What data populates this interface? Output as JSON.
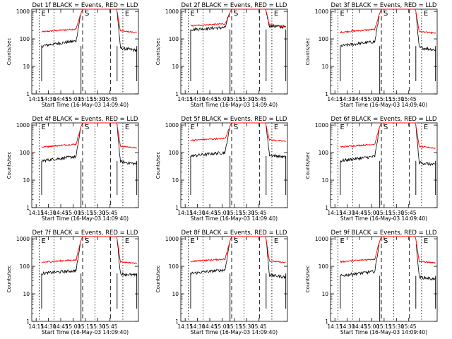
{
  "figure": {
    "x_label": "Start Time (16-May-03 14:09:40)",
    "y_label": "Counts/sec",
    "x_ticks": [
      "14:15",
      "14:30",
      "14:45",
      "15:00",
      "15:15",
      "15:30",
      "15:45"
    ],
    "y_ticks": [
      "1",
      "10",
      "100",
      "1000"
    ],
    "colors": {
      "events": "#000000",
      "lld": "#ff0000"
    }
  },
  "chart_data": [
    {
      "type": "line",
      "title": "Det 1f BLACK = Events, RED = LLD",
      "markers": [
        {
          "label": "E",
          "t": 9
        },
        {
          "label": "S",
          "t": 62
        },
        {
          "label": "E",
          "t": 111
        }
      ],
      "xlim": [
        0,
        130
      ],
      "ylim": [
        1,
        1200
      ],
      "yscale": "log",
      "events": {
        "before_level": 55,
        "before_rise": 1.6,
        "after_level": 48,
        "after_decay": 0.8
      },
      "lld": {
        "before_level": 180,
        "before_rise": 1.3,
        "after_level": 200,
        "after_decay": 0.85
      }
    },
    {
      "type": "line",
      "title": "Det 2f BLACK = Events, RED = LLD",
      "markers": [
        {
          "label": "E",
          "t": 9
        },
        {
          "label": "S",
          "t": 62
        },
        {
          "label": "E",
          "t": 111
        }
      ],
      "xlim": [
        0,
        130
      ],
      "ylim": [
        1,
        1200
      ],
      "yscale": "log",
      "events": {
        "before_level": 220,
        "before_rise": 1.2,
        "after_level": 300,
        "after_decay": 0.9
      },
      "lld": {
        "before_level": 300,
        "before_rise": 1.2,
        "after_level": 330,
        "after_decay": 0.85
      }
    },
    {
      "type": "line",
      "title": "Det 3f BLACK = Events, RED = LLD",
      "markers": [
        {
          "label": "E",
          "t": 9
        },
        {
          "label": "S",
          "t": 62
        },
        {
          "label": "E",
          "t": 111
        }
      ],
      "xlim": [
        0,
        130
      ],
      "ylim": [
        1,
        1200
      ],
      "yscale": "log",
      "events": {
        "before_level": 55,
        "before_rise": 1.5,
        "after_level": 50,
        "after_decay": 0.8
      },
      "lld": {
        "before_level": 175,
        "before_rise": 1.3,
        "after_level": 190,
        "after_decay": 0.85
      }
    },
    {
      "type": "line",
      "title": "Det 4f BLACK = Events, RED = LLD",
      "markers": [
        {
          "label": "E",
          "t": 9
        },
        {
          "label": "S",
          "t": 62
        },
        {
          "label": "E",
          "t": 111
        }
      ],
      "xlim": [
        0,
        130
      ],
      "ylim": [
        1,
        1200
      ],
      "yscale": "log",
      "events": {
        "before_level": 50,
        "before_rise": 1.5,
        "after_level": 48,
        "after_decay": 0.8
      },
      "lld": {
        "before_level": 160,
        "before_rise": 1.3,
        "after_level": 175,
        "after_decay": 0.85
      }
    },
    {
      "type": "line",
      "title": "Det 5f BLACK = Events, RED = LLD",
      "markers": [
        {
          "label": "E",
          "t": 9
        },
        {
          "label": "S",
          "t": 62
        },
        {
          "label": "E",
          "t": 111
        }
      ],
      "xlim": [
        0,
        130
      ],
      "ylim": [
        1,
        1200
      ],
      "yscale": "log",
      "events": {
        "before_level": 75,
        "before_rise": 1.4,
        "after_level": 85,
        "after_decay": 0.8
      },
      "lld": {
        "before_level": 280,
        "before_rise": 1.2,
        "after_level": 300,
        "after_decay": 0.85
      }
    },
    {
      "type": "line",
      "title": "Det 6f BLACK = Events, RED = LLD",
      "markers": [
        {
          "label": "E",
          "t": 9
        },
        {
          "label": "S",
          "t": 62
        },
        {
          "label": "E",
          "t": 111
        }
      ],
      "xlim": [
        0,
        130
      ],
      "ylim": [
        1,
        1200
      ],
      "yscale": "log",
      "events": {
        "before_level": 50,
        "before_rise": 1.5,
        "after_level": 45,
        "after_decay": 0.8
      },
      "lld": {
        "before_level": 160,
        "before_rise": 1.3,
        "after_level": 170,
        "after_decay": 0.85
      }
    },
    {
      "type": "line",
      "title": "Det 7f BLACK = Events, RED = LLD",
      "markers": [
        {
          "label": "E",
          "t": 9
        },
        {
          "label": "S",
          "t": 62
        },
        {
          "label": "E",
          "t": 111
        }
      ],
      "xlim": [
        0,
        130
      ],
      "ylim": [
        1,
        1200
      ],
      "yscale": "log",
      "events": {
        "before_level": 55,
        "before_rise": 1.3,
        "after_level": 55,
        "after_decay": 0.85
      },
      "lld": {
        "before_level": 140,
        "before_rise": 1.25,
        "after_level": 150,
        "after_decay": 0.85
      }
    },
    {
      "type": "line",
      "title": "Det 8f BLACK = Events, RED = LLD",
      "markers": [
        {
          "label": "E",
          "t": 9
        },
        {
          "label": "S",
          "t": 62
        },
        {
          "label": "E",
          "t": 111
        }
      ],
      "xlim": [
        0,
        130
      ],
      "ylim": [
        1,
        1200
      ],
      "yscale": "log",
      "events": {
        "before_level": 55,
        "before_rise": 1.4,
        "after_level": 50,
        "after_decay": 0.8
      },
      "lld": {
        "before_level": 150,
        "before_rise": 1.25,
        "after_level": 160,
        "after_decay": 0.85
      }
    },
    {
      "type": "line",
      "title": "Det 9f BLACK = Events, RED = LLD",
      "markers": [
        {
          "label": "E",
          "t": 9
        },
        {
          "label": "S",
          "t": 62
        },
        {
          "label": "E",
          "t": 111
        }
      ],
      "xlim": [
        0,
        130
      ],
      "ylim": [
        1,
        1200
      ],
      "yscale": "log",
      "events": {
        "before_level": 45,
        "before_rise": 1.5,
        "after_level": 42,
        "after_decay": 0.8
      },
      "lld": {
        "before_level": 145,
        "before_rise": 1.3,
        "after_level": 155,
        "after_decay": 0.85
      }
    }
  ]
}
